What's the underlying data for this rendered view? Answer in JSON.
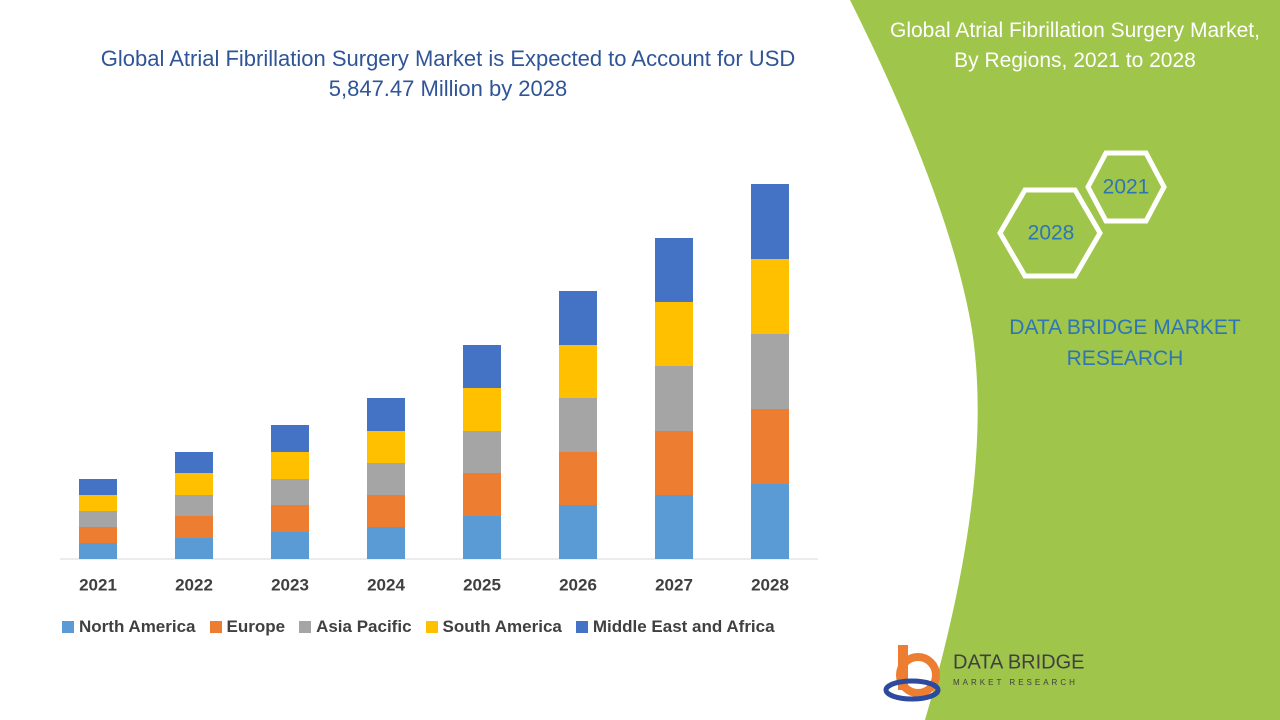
{
  "chart_data": {
    "type": "stacked-bar",
    "title": "Global Atrial Fibrillation Surgery Market is Expected to Account for USD 5,847.47 Million by 2028",
    "categories": [
      "2021",
      "2022",
      "2023",
      "2024",
      "2025",
      "2026",
      "2027",
      "2028"
    ],
    "series": [
      {
        "name": "North America",
        "color": "#5b9bd5",
        "values": [
          16,
          21,
          27,
          32,
          43,
          54,
          64,
          75
        ]
      },
      {
        "name": "Europe",
        "color": "#ed7d31",
        "values": [
          16,
          22,
          27,
          32,
          43,
          53,
          64,
          75
        ]
      },
      {
        "name": "Asia Pacific",
        "color": "#a5a5a5",
        "values": [
          16,
          21,
          26,
          32,
          42,
          54,
          65,
          75
        ]
      },
      {
        "name": "South America",
        "color": "#ffc000",
        "values": [
          16,
          22,
          27,
          32,
          43,
          53,
          64,
          75
        ]
      },
      {
        "name": "Middle East and Africa",
        "color": "#4472c4",
        "values": [
          16,
          21,
          27,
          33,
          43,
          54,
          64,
          75
        ]
      }
    ]
  },
  "side_panel": {
    "title": "Global Atrial Fibrillation Surgery Market, By Regions, 2021 to 2028",
    "hex_labels": [
      "2021",
      "2028"
    ],
    "brand": "DATA BRIDGE MARKET RESEARCH"
  },
  "logo": {
    "name": "DATA BRIDGE",
    "tagline": "MARKET RESEARCH"
  }
}
